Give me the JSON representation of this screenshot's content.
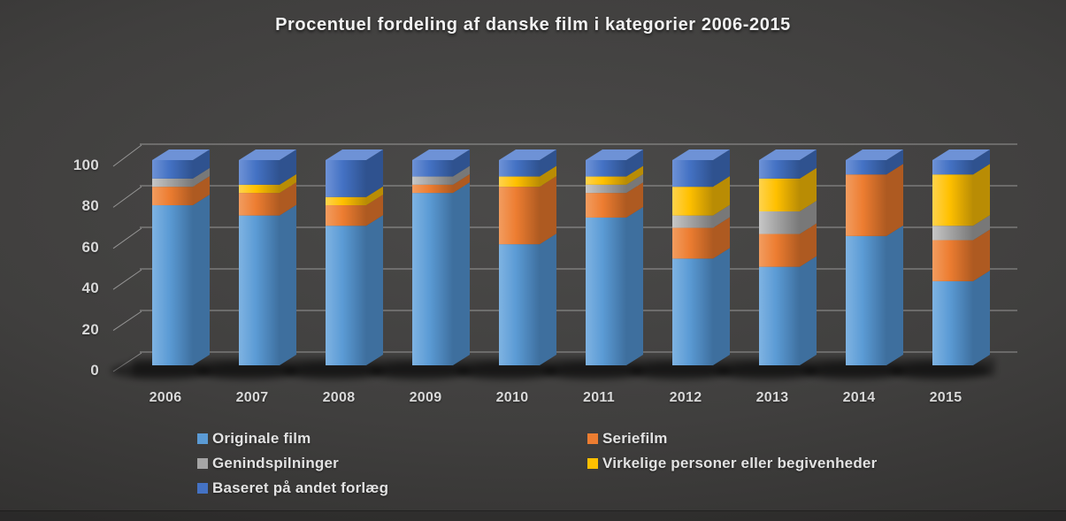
{
  "title": "Procentuel fordeling af danske film i kategorier 2006-2015",
  "chart_data": {
    "type": "bar",
    "stacked": true,
    "stacked_total": 100,
    "title": "Procentuel fordeling af danske film i kategorier 2006-2015",
    "xlabel": "",
    "ylabel": "",
    "ylim": [
      0,
      100
    ],
    "y_ticks": [
      0,
      20,
      40,
      60,
      80,
      100
    ],
    "grid": true,
    "legend_position": "bottom",
    "style": "3d-stacked-column",
    "categories": [
      "2006",
      "2007",
      "2008",
      "2009",
      "2010",
      "2011",
      "2012",
      "2013",
      "2014",
      "2015"
    ],
    "series": [
      {
        "name": "Originale film",
        "color": "#5B9BD5",
        "color_dark": "#3E6F9E",
        "color_light": "#7FB3E2",
        "values": [
          78,
          73,
          68,
          84,
          59,
          72,
          52,
          48,
          63,
          41
        ]
      },
      {
        "name": "Seriefilm",
        "color": "#ED7D31",
        "color_dark": "#AE5A21",
        "color_light": "#F29C5F",
        "values": [
          9,
          11,
          10,
          4,
          28,
          12,
          15,
          16,
          30,
          20
        ]
      },
      {
        "name": "Genindspilninger",
        "color": "#A5A5A5",
        "color_dark": "#787878",
        "color_light": "#C7C7C7",
        "values": [
          4,
          0,
          0,
          4,
          0,
          4,
          6,
          11,
          0,
          7
        ]
      },
      {
        "name": "Virkelige personer eller begivenheder",
        "color": "#FFC000",
        "color_dark": "#B98C04",
        "color_light": "#FFD34D",
        "values": [
          0,
          4,
          4,
          0,
          5,
          4,
          14,
          16,
          0,
          25
        ]
      },
      {
        "name": "Baseret på andet forlæg",
        "color": "#4472C4",
        "color_dark": "#2F528F",
        "color_light": "#6E92D6",
        "values": [
          9,
          12,
          18,
          8,
          8,
          8,
          13,
          9,
          7,
          7
        ]
      }
    ]
  }
}
